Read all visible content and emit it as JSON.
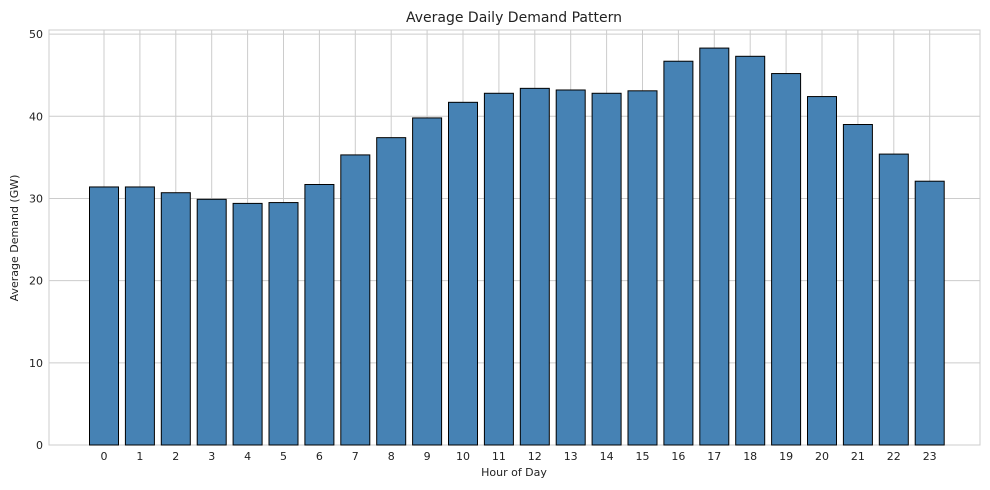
{
  "chart_data": {
    "type": "bar",
    "title": "Average Daily Demand Pattern",
    "xlabel": "Hour of Day",
    "ylabel": "Average Demand (GW)",
    "categories": [
      "0",
      "1",
      "2",
      "3",
      "4",
      "5",
      "6",
      "7",
      "8",
      "9",
      "10",
      "11",
      "12",
      "13",
      "14",
      "15",
      "16",
      "17",
      "18",
      "19",
      "20",
      "21",
      "22",
      "23"
    ],
    "values": [
      31.4,
      31.4,
      30.7,
      29.9,
      29.4,
      29.5,
      31.7,
      35.3,
      37.4,
      39.8,
      41.7,
      42.8,
      43.4,
      43.2,
      42.8,
      43.1,
      46.7,
      48.3,
      47.3,
      45.2,
      42.4,
      39.0,
      35.4,
      32.1
    ],
    "ylim": [
      0,
      50.5
    ],
    "yticks": [
      "0",
      "10",
      "20",
      "30",
      "40",
      "50"
    ],
    "grid": true,
    "colors": {
      "bar_fill": "#4682b4",
      "bar_edge": "#000000",
      "grid": "#cccccc"
    }
  }
}
